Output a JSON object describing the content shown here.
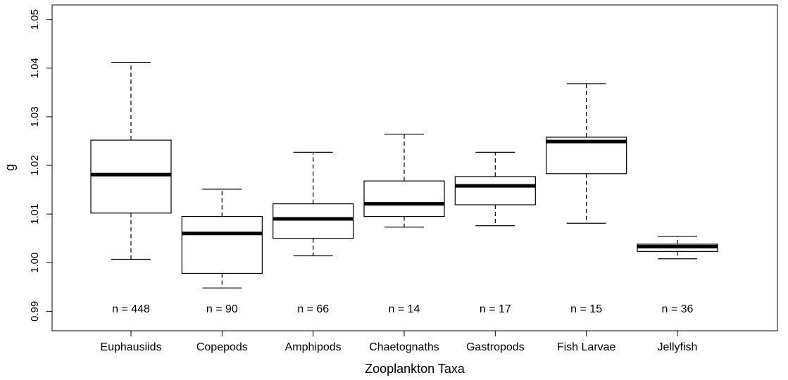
{
  "chart_data": {
    "type": "boxplot",
    "title": "",
    "xlabel": "Zooplankton Taxa",
    "ylabel": "g",
    "ylim": [
      0.986,
      1.053
    ],
    "yticks": [
      0.99,
      1.0,
      1.01,
      1.02,
      1.03,
      1.04,
      1.05
    ],
    "ytick_labels": [
      "0.99",
      "1.00",
      "1.01",
      "1.02",
      "1.03",
      "1.04",
      "1.05"
    ],
    "categories": [
      "Euphausiids",
      "Copepods",
      "Amphipods",
      "Chaetognaths",
      "Gastropods",
      "Fish Larvae",
      "Jellyfish"
    ],
    "counts": [
      "n = 448",
      "n = 90",
      "n = 66",
      "n = 14",
      "n = 17",
      "n = 15",
      "n = 36"
    ],
    "boxes": [
      {
        "whisker_low": 1.0007,
        "q1": 1.0102,
        "median": 1.0181,
        "q3": 1.0252,
        "whisker_high": 1.0412
      },
      {
        "whisker_low": 0.9948,
        "q1": 0.9978,
        "median": 1.006,
        "q3": 1.0095,
        "whisker_high": 1.0151
      },
      {
        "whisker_low": 1.0014,
        "q1": 1.005,
        "median": 1.009,
        "q3": 1.0121,
        "whisker_high": 1.0227
      },
      {
        "whisker_low": 1.0073,
        "q1": 1.0095,
        "median": 1.0121,
        "q3": 1.0168,
        "whisker_high": 1.0264
      },
      {
        "whisker_low": 1.0076,
        "q1": 1.0119,
        "median": 1.0158,
        "q3": 1.0177,
        "whisker_high": 1.0227
      },
      {
        "whisker_low": 1.0081,
        "q1": 1.0183,
        "median": 1.0249,
        "q3": 1.0258,
        "whisker_high": 1.0368
      },
      {
        "whisker_low": 1.0008,
        "q1": 1.0023,
        "median": 1.0033,
        "q3": 1.0038,
        "whisker_high": 1.0054
      }
    ],
    "grid": false,
    "legend": "none"
  }
}
